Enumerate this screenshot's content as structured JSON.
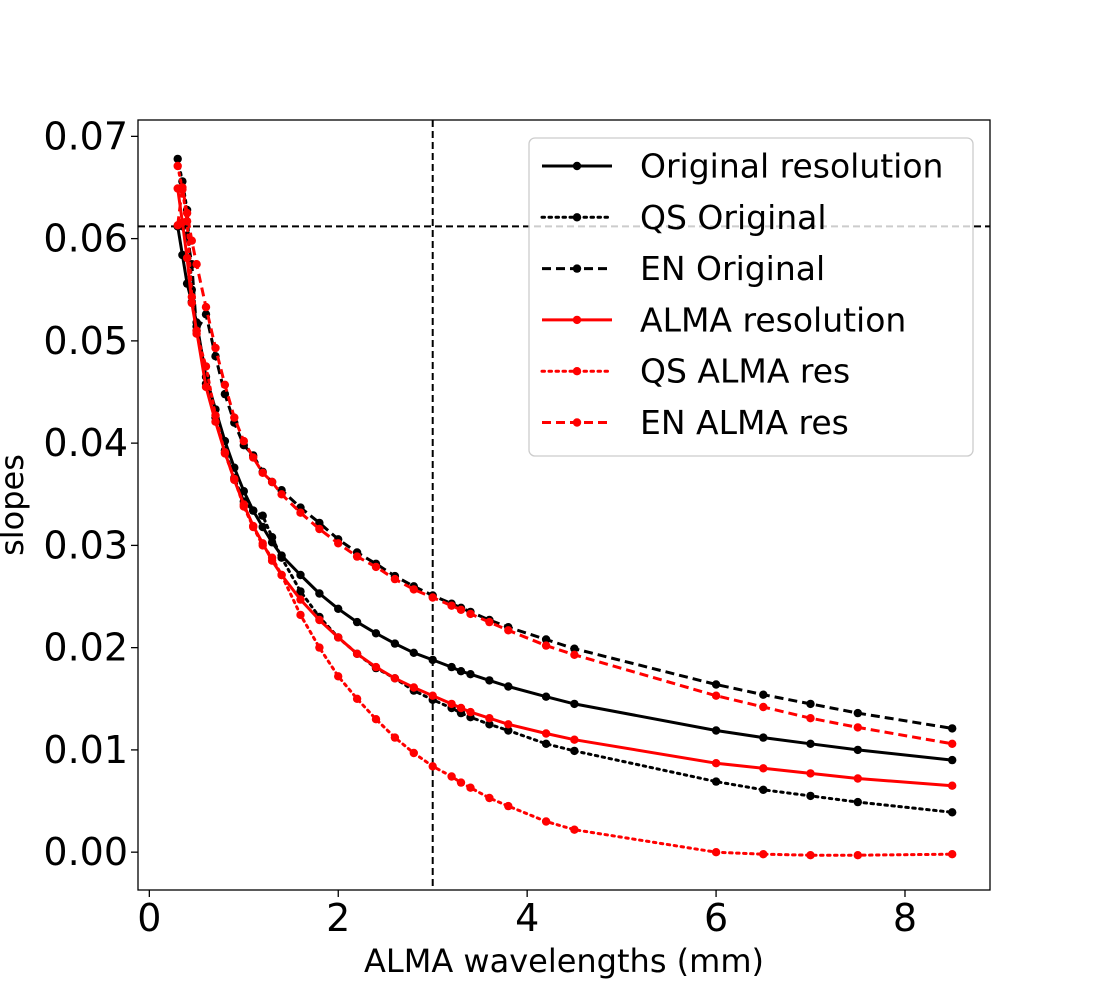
{
  "chart_data": {
    "type": "line",
    "title": "",
    "xlabel": "ALMA wavelengths (mm)",
    "ylabel": "slopes",
    "xlim": [
      -0.12,
      8.9
    ],
    "ylim": [
      -0.0037,
      0.0716
    ],
    "x_ticks": [
      0,
      2,
      4,
      6,
      8
    ],
    "x_tick_labels": [
      "0",
      "2",
      "4",
      "6",
      "8"
    ],
    "y_ticks": [
      0.0,
      0.01,
      0.02,
      0.03,
      0.04,
      0.05,
      0.06,
      0.07
    ],
    "y_tick_labels": [
      "0.00",
      "0.01",
      "0.02",
      "0.03",
      "0.04",
      "0.05",
      "0.06",
      "0.07"
    ],
    "legend_position": "upper-right",
    "reference_lines": {
      "horizontal_y": 0.0612,
      "vertical_x": 3.0,
      "color": "#000000",
      "style": "dashed"
    },
    "x": [
      0.3,
      0.35,
      0.4,
      0.45,
      0.5,
      0.6,
      0.7,
      0.8,
      0.9,
      1.0,
      1.1,
      1.2,
      1.3,
      1.4,
      1.6,
      1.8,
      2.0,
      2.2,
      2.4,
      2.6,
      2.8,
      3.0,
      3.2,
      3.3,
      3.4,
      3.6,
      3.8,
      4.2,
      4.5,
      6.0,
      6.5,
      7.0,
      7.5,
      8.5
    ],
    "series": [
      {
        "name": "Original resolution",
        "color": "#000000",
        "linestyle": "solid",
        "values": [
          0.0612,
          0.0584,
          0.0556,
          0.0538,
          0.0518,
          0.0465,
          0.0433,
          0.0402,
          0.0376,
          0.0353,
          0.0334,
          0.0318,
          0.0303,
          0.029,
          0.0271,
          0.0253,
          0.0238,
          0.0225,
          0.0214,
          0.0204,
          0.0195,
          0.0188,
          0.0181,
          0.0177,
          0.0174,
          0.0168,
          0.0162,
          0.0152,
          0.0145,
          0.0119,
          0.0112,
          0.0106,
          0.01,
          0.009
        ]
      },
      {
        "name": "QS Original",
        "color": "#000000",
        "linestyle": "dotted",
        "values": [
          0.0678,
          0.0656,
          0.0628,
          0.055,
          0.0514,
          0.0458,
          0.0425,
          0.0393,
          0.0366,
          0.0343,
          0.0334,
          0.0329,
          0.0308,
          0.0288,
          0.0255,
          0.023,
          0.021,
          0.0194,
          0.018,
          0.017,
          0.0158,
          0.0149,
          0.0141,
          0.0136,
          0.0132,
          0.0125,
          0.0119,
          0.0106,
          0.0099,
          0.0069,
          0.0061,
          0.0055,
          0.0049,
          0.0039
        ]
      },
      {
        "name": "EN Original",
        "color": "#000000",
        "linestyle": "dashed",
        "values": [
          0.0612,
          0.0612,
          0.0603,
          0.0575,
          0.051,
          0.0526,
          0.0485,
          0.0448,
          0.042,
          0.0398,
          0.0388,
          0.0372,
          0.0362,
          0.0354,
          0.0337,
          0.0322,
          0.0306,
          0.0293,
          0.0282,
          0.027,
          0.026,
          0.0251,
          0.0243,
          0.0239,
          0.0235,
          0.0227,
          0.022,
          0.0208,
          0.0199,
          0.0164,
          0.0154,
          0.0145,
          0.0136,
          0.0121
        ]
      },
      {
        "name": "ALMA resolution",
        "color": "#ff0000",
        "linestyle": "solid",
        "values": [
          0.0649,
          0.0616,
          0.0581,
          0.0537,
          0.051,
          0.0455,
          0.0421,
          0.0391,
          0.0364,
          0.034,
          0.0319,
          0.0302,
          0.0285,
          0.0271,
          0.0247,
          0.0227,
          0.021,
          0.0194,
          0.0181,
          0.017,
          0.0161,
          0.0153,
          0.0145,
          0.0141,
          0.0137,
          0.0131,
          0.0125,
          0.0116,
          0.011,
          0.0087,
          0.0082,
          0.0077,
          0.0072,
          0.0065
        ]
      },
      {
        "name": "QS ALMA res",
        "color": "#ff0000",
        "linestyle": "dotted",
        "values": [
          0.0671,
          0.0648,
          0.0617,
          0.0543,
          0.0507,
          0.0475,
          0.0427,
          0.039,
          0.0365,
          0.0338,
          0.0318,
          0.03,
          0.0288,
          0.0271,
          0.0232,
          0.02,
          0.0172,
          0.015,
          0.013,
          0.0112,
          0.0097,
          0.0084,
          0.0074,
          0.0068,
          0.0063,
          0.0053,
          0.0045,
          0.003,
          0.0022,
          0.0,
          -0.0002,
          -0.0003,
          -0.0003,
          -0.0002
        ]
      },
      {
        "name": "EN ALMA res",
        "color": "#ff0000",
        "linestyle": "dashed",
        "values": [
          0.0613,
          0.065,
          0.0625,
          0.0598,
          0.0575,
          0.0533,
          0.0493,
          0.0457,
          0.0425,
          0.0402,
          0.0386,
          0.0371,
          0.0362,
          0.035,
          0.0332,
          0.0316,
          0.0302,
          0.0289,
          0.0279,
          0.0267,
          0.0257,
          0.0249,
          0.0241,
          0.0237,
          0.0233,
          0.0225,
          0.0217,
          0.0202,
          0.0193,
          0.0153,
          0.0142,
          0.0131,
          0.0122,
          0.0106
        ]
      }
    ]
  }
}
